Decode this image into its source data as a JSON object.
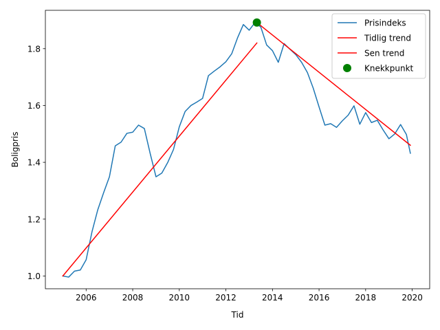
{
  "chart_data": {
    "type": "line",
    "title": "",
    "xlabel": "Tid",
    "ylabel": "Boligpris",
    "xlim": [
      2004.25,
      2020.75
    ],
    "ylim": [
      0.955,
      1.935
    ],
    "xticks": [
      2006,
      2008,
      2010,
      2012,
      2014,
      2016,
      2018,
      2020
    ],
    "xtick_labels": [
      "2006",
      "2008",
      "2010",
      "2012",
      "2014",
      "2016",
      "2018",
      "2020"
    ],
    "yticks": [
      1.0,
      1.2,
      1.4,
      1.6,
      1.8
    ],
    "ytick_labels": [
      "1.0",
      "1.2",
      "1.4",
      "1.6",
      "1.8"
    ],
    "grid": false,
    "legend_position": "top-right",
    "series": [
      {
        "name": "Prisindeks",
        "kind": "line",
        "color": "#1f77b4",
        "x": [
          2005.0,
          2005.25,
          2005.5,
          2005.75,
          2006.0,
          2006.25,
          2006.5,
          2006.75,
          2007.0,
          2007.25,
          2007.5,
          2007.75,
          2008.0,
          2008.25,
          2008.5,
          2008.75,
          2009.0,
          2009.25,
          2009.5,
          2009.75,
          2010.0,
          2010.25,
          2010.5,
          2010.75,
          2011.0,
          2011.25,
          2011.5,
          2011.75,
          2012.0,
          2012.25,
          2012.5,
          2012.75,
          2013.0,
          2013.25,
          2013.5,
          2013.75,
          2014.0,
          2014.25,
          2014.5,
          2014.75,
          2015.0,
          2015.25,
          2015.5,
          2015.75,
          2016.0,
          2016.25,
          2016.5,
          2016.75,
          2017.0,
          2017.25,
          2017.5,
          2017.75,
          2018.0,
          2018.25,
          2018.5,
          2018.75,
          2019.0,
          2019.25,
          2019.5,
          2019.75,
          2019.92
        ],
        "values": [
          1.0,
          0.996,
          1.017,
          1.021,
          1.057,
          1.155,
          1.233,
          1.293,
          1.349,
          1.458,
          1.471,
          1.502,
          1.506,
          1.531,
          1.519,
          1.431,
          1.349,
          1.362,
          1.399,
          1.445,
          1.525,
          1.579,
          1.6,
          1.612,
          1.625,
          1.705,
          1.721,
          1.736,
          1.754,
          1.782,
          1.838,
          1.885,
          1.865,
          1.892,
          1.876,
          1.813,
          1.793,
          1.752,
          1.818,
          1.798,
          1.779,
          1.752,
          1.716,
          1.661,
          1.595,
          1.531,
          1.536,
          1.523,
          1.546,
          1.566,
          1.599,
          1.534,
          1.575,
          1.54,
          1.548,
          1.514,
          1.483,
          1.5,
          1.533,
          1.498,
          1.432
        ]
      },
      {
        "name": "Tidlig trend",
        "kind": "line",
        "color": "#ff0000",
        "x": [
          2005.0,
          2013.33
        ],
        "values": [
          1.0,
          1.82
        ]
      },
      {
        "name": "Sen trend",
        "kind": "line",
        "color": "#ff0000",
        "x": [
          2013.33,
          2019.92
        ],
        "values": [
          1.892,
          1.46
        ]
      },
      {
        "name": "Knekkpunkt",
        "kind": "scatter",
        "color": "#008000",
        "x": [
          2013.33
        ],
        "values": [
          1.892
        ]
      }
    ]
  }
}
